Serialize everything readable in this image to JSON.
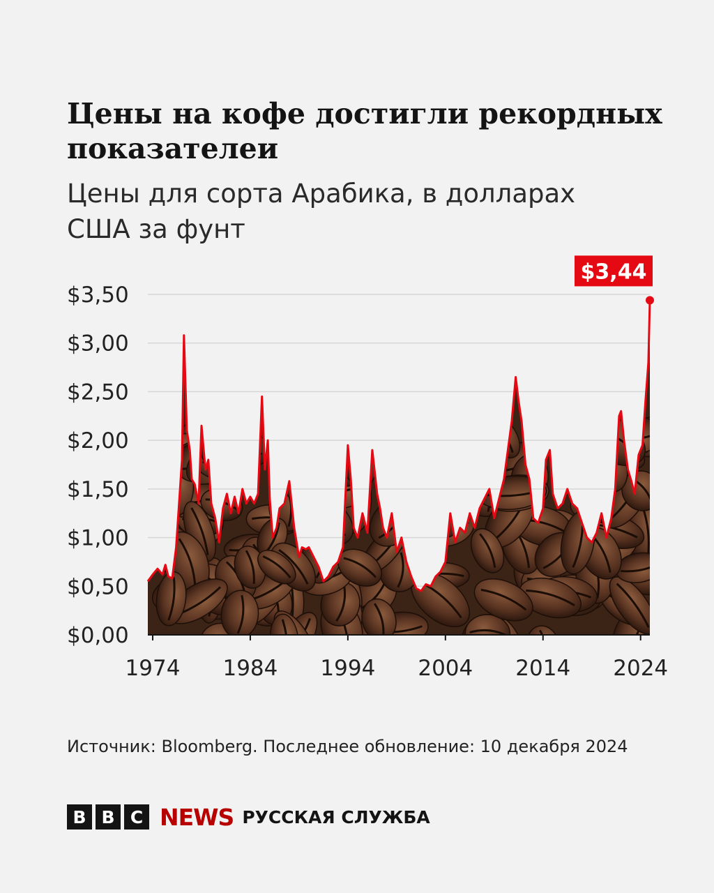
{
  "title": "Цены на кофе достигли рекордных показателеи",
  "subtitle": "Цены для сорта Арабика, в долларах США за фунт",
  "source": "Источник: Bloomberg. Последнее обновление: 10 декабря 2024",
  "logo": {
    "letters": [
      "B",
      "B",
      "C"
    ],
    "news": "NEWS",
    "service": "РУССКАЯ СЛУЖБА"
  },
  "colors": {
    "line": "#e50914",
    "label_bg": "#e50914",
    "background": "#f2f2f2",
    "brand": "#b80000"
  },
  "chart_data": {
    "type": "line",
    "title": "Цены на кофе достигли рекордных показателеи",
    "subtitle": "Цены для сорта Арабика, в долларах США за фунт",
    "xlim": [
      1973.5,
      2024.95
    ],
    "ylim": [
      0,
      3.5
    ],
    "x_ticks": [
      1974,
      1984,
      1994,
      2004,
      2014,
      2024
    ],
    "x_tick_labels": [
      "1974",
      "1984",
      "1994",
      "2004",
      "2014",
      "2024"
    ],
    "y_ticks": [
      0,
      0.5,
      1,
      1.5,
      2,
      2.5,
      3,
      3.5
    ],
    "y_tick_labels": [
      "$0,00",
      "$0,50",
      "$1,00",
      "$1,50",
      "$2,00",
      "$2,50",
      "$3,00",
      "$3,50"
    ],
    "grid": true,
    "fill": "coffee beans image under the line",
    "annotation": {
      "x": 2024.95,
      "y": 3.44,
      "text": "$3,44"
    },
    "series": [
      {
        "x": [
          1973.5,
          1974.0,
          1974.5,
          1975.0,
          1975.3,
          1975.6,
          1976.0,
          1976.4,
          1976.8,
          1977.0,
          1977.2,
          1977.5,
          1977.8,
          1978.0,
          1978.3,
          1978.7,
          1979.0,
          1979.4,
          1979.7,
          1980.0,
          1980.4,
          1980.8,
          1981.2,
          1981.6,
          1982.0,
          1982.4,
          1982.8,
          1983.2,
          1983.6,
          1984.0,
          1984.4,
          1984.8,
          1985.2,
          1985.5,
          1985.8,
          1986.0,
          1986.3,
          1986.7,
          1987.0,
          1987.5,
          1988.0,
          1988.5,
          1989.0,
          1989.3,
          1989.7,
          1990.0,
          1990.5,
          1991.0,
          1991.5,
          1992.0,
          1992.5,
          1993.0,
          1993.5,
          1994.0,
          1994.3,
          1994.6,
          1995.0,
          1995.5,
          1996.0,
          1996.5,
          1997.0,
          1997.3,
          1997.6,
          1998.0,
          1998.5,
          1999.0,
          1999.5,
          2000.0,
          2000.5,
          2001.0,
          2001.5,
          2002.0,
          2002.5,
          2003.0,
          2003.5,
          2004.0,
          2004.5,
          2005.0,
          2005.5,
          2006.0,
          2006.5,
          2007.0,
          2007.5,
          2008.0,
          2008.5,
          2009.0,
          2009.5,
          2010.0,
          2010.4,
          2010.8,
          2011.2,
          2011.5,
          2011.8,
          2012.2,
          2012.6,
          2013.0,
          2013.5,
          2014.0,
          2014.3,
          2014.7,
          2015.0,
          2015.5,
          2016.0,
          2016.5,
          2017.0,
          2017.5,
          2018.0,
          2018.5,
          2019.0,
          2019.5,
          2020.0,
          2020.5,
          2021.0,
          2021.4,
          2021.8,
          2022.0,
          2022.3,
          2022.7,
          2023.0,
          2023.4,
          2023.8,
          2024.2,
          2024.5,
          2024.8,
          2024.95
        ],
        "y": [
          0.55,
          0.62,
          0.68,
          0.62,
          0.72,
          0.6,
          0.58,
          0.9,
          1.5,
          1.8,
          3.08,
          2.1,
          1.9,
          1.6,
          1.55,
          1.35,
          2.15,
          1.7,
          1.8,
          1.35,
          1.2,
          0.95,
          1.3,
          1.45,
          1.25,
          1.42,
          1.25,
          1.5,
          1.35,
          1.42,
          1.35,
          1.45,
          2.45,
          1.7,
          2.0,
          1.4,
          1.0,
          1.1,
          1.3,
          1.35,
          1.58,
          1.1,
          0.8,
          0.9,
          0.88,
          0.9,
          0.8,
          0.7,
          0.55,
          0.6,
          0.7,
          0.75,
          0.9,
          1.95,
          1.6,
          1.1,
          1.0,
          1.25,
          1.05,
          1.9,
          1.45,
          1.3,
          1.1,
          1.0,
          1.25,
          0.85,
          1.0,
          0.75,
          0.6,
          0.48,
          0.45,
          0.52,
          0.5,
          0.6,
          0.65,
          0.75,
          1.25,
          0.95,
          1.1,
          1.05,
          1.25,
          1.1,
          1.3,
          1.4,
          1.5,
          1.2,
          1.4,
          1.6,
          1.9,
          2.2,
          2.65,
          2.4,
          2.2,
          1.75,
          1.6,
          1.2,
          1.15,
          1.3,
          1.8,
          1.9,
          1.45,
          1.3,
          1.35,
          1.5,
          1.35,
          1.3,
          1.15,
          1.0,
          0.95,
          1.05,
          1.25,
          1.0,
          1.2,
          1.5,
          2.25,
          2.3,
          2.0,
          1.7,
          1.6,
          1.45,
          1.85,
          1.95,
          2.4,
          2.8,
          3.44
        ]
      }
    ]
  }
}
